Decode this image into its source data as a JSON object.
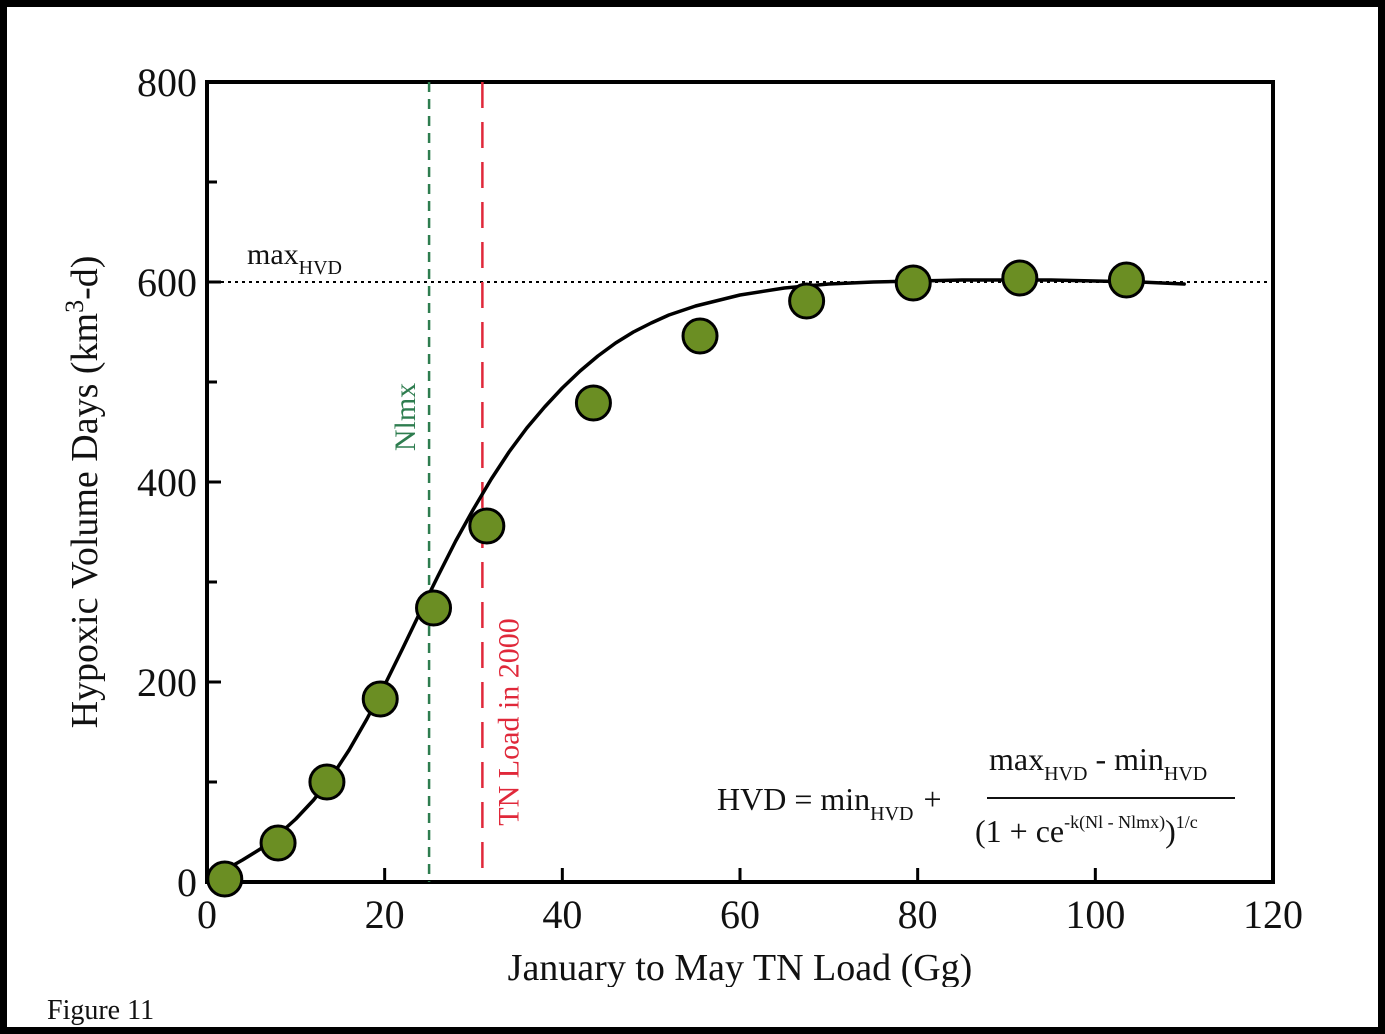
{
  "caption": "Figure 11",
  "colors": {
    "point_fill": "#6b8e23",
    "point_stroke": "#000000",
    "curve": "#000000",
    "nlmx_line": "#2e7d4f",
    "tn2000_line": "#e0283a",
    "max_line": "#000000"
  },
  "chart_data": {
    "type": "scatter",
    "xlabel": "January to May TN Load (Gg)",
    "ylabel": "Hypoxic Volume Days (km³-d)",
    "ylabel_parts": {
      "pre": "Hypoxic Volume Days (km",
      "sup": "3",
      "post": "-d)"
    },
    "xlim": [
      0,
      120
    ],
    "ylim": [
      0,
      800
    ],
    "x_ticks": [
      0,
      20,
      40,
      60,
      80,
      100,
      120
    ],
    "y_ticks": [
      0,
      200,
      400,
      600,
      800
    ],
    "y_minor_ticks": [
      100,
      300,
      500,
      700
    ],
    "points": [
      {
        "x": 2,
        "y": 3
      },
      {
        "x": 8,
        "y": 39
      },
      {
        "x": 13.5,
        "y": 100
      },
      {
        "x": 19.5,
        "y": 183
      },
      {
        "x": 25.5,
        "y": 274
      },
      {
        "x": 31.5,
        "y": 356
      },
      {
        "x": 43.5,
        "y": 479
      },
      {
        "x": 55.5,
        "y": 546
      },
      {
        "x": 67.5,
        "y": 581
      },
      {
        "x": 79.5,
        "y": 599
      },
      {
        "x": 91.5,
        "y": 604
      },
      {
        "x": 103.5,
        "y": 602
      }
    ],
    "fit_curve": {
      "x": [
        0,
        2,
        4,
        6,
        8,
        10,
        12,
        14,
        16,
        18,
        20,
        22,
        24,
        26,
        28,
        30,
        32,
        34,
        36,
        38,
        40,
        42,
        44,
        46,
        48,
        50,
        52,
        55,
        60,
        65,
        70,
        75,
        80,
        85,
        90,
        95,
        100,
        105,
        110
      ],
      "y": [
        3,
        12,
        22,
        33,
        47,
        63,
        82,
        105,
        132,
        163,
        197,
        233,
        270,
        306,
        341,
        373,
        403,
        430,
        454,
        475,
        494,
        511,
        526,
        539,
        550,
        559,
        567,
        576,
        587,
        594,
        598,
        600,
        601,
        602,
        602,
        602,
        601,
        600,
        598
      ]
    },
    "reference_lines": [
      {
        "orientation": "horizontal",
        "value": 600,
        "label": "max",
        "label_sub": "HVD",
        "style": "dotted"
      },
      {
        "orientation": "vertical",
        "value": 25,
        "label": "Nlmx",
        "style": "dashed"
      },
      {
        "orientation": "vertical",
        "value": 31,
        "label": "TN Load in 2000",
        "style": "long-dashed"
      }
    ],
    "equation": {
      "lhs": "HVD = min",
      "lhs_sub": "HVD",
      "plus": "+",
      "num_a": "max",
      "num_a_sub": "HVD",
      "num_minus": " - min",
      "num_b_sub": "HVD",
      "den_a": "(1 + ce",
      "den_exp": "-k(Nl - Nlmx)",
      "den_b": ")",
      "den_power": "1/c"
    }
  }
}
